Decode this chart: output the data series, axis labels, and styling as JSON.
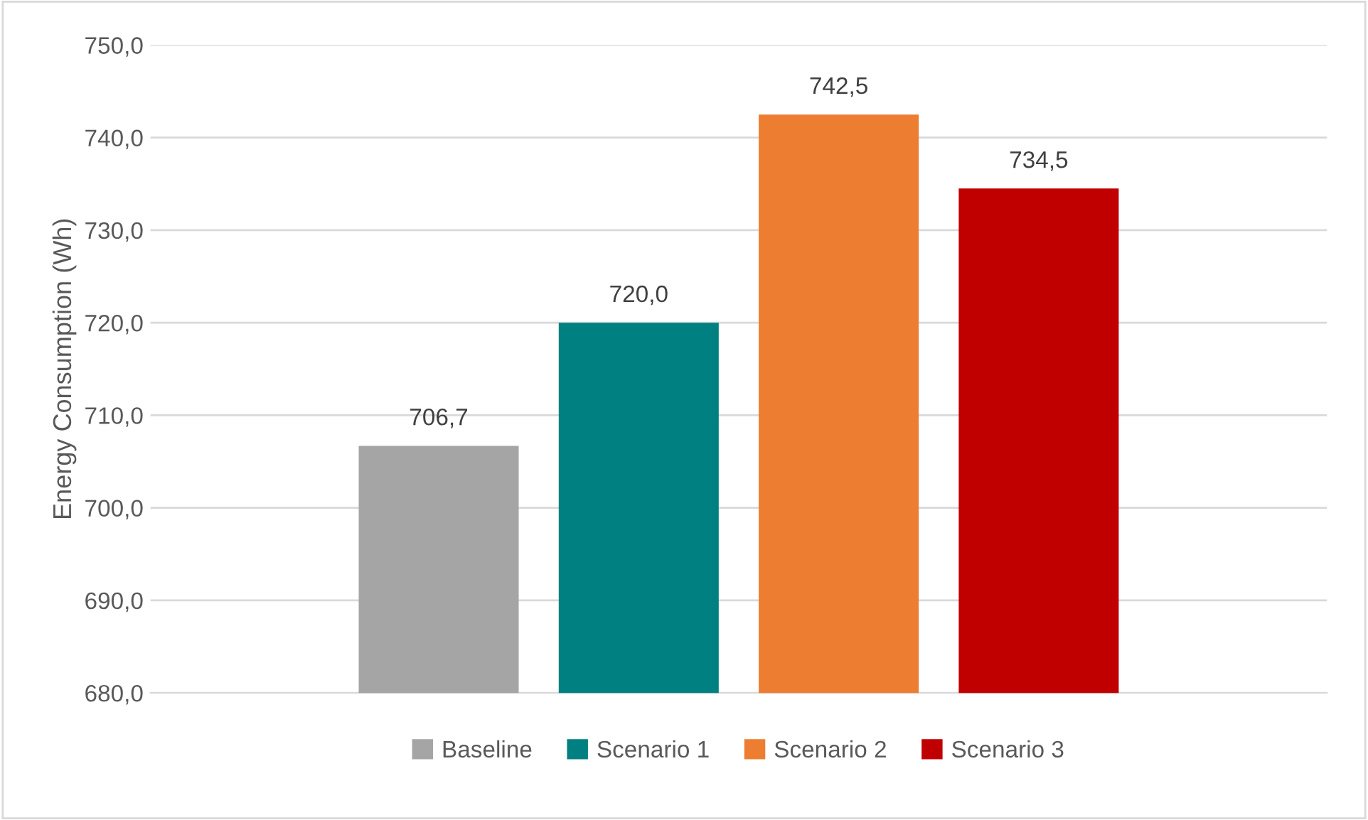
{
  "chart_data": {
    "type": "bar",
    "ylabel": "Energy Consumption (Wh)",
    "categories": [
      null
    ],
    "series": [
      {
        "name": "Baseline",
        "color": "#a5a5a5",
        "values": [
          706.7
        ],
        "value_labels": [
          "706,7"
        ]
      },
      {
        "name": "Scenario 1",
        "color": "#008080",
        "values": [
          720.0
        ],
        "value_labels": [
          "720,0"
        ]
      },
      {
        "name": "Scenario 2",
        "color": "#ed7d31",
        "values": [
          742.5
        ],
        "value_labels": [
          "742,5"
        ]
      },
      {
        "name": "Scenario 3",
        "color": "#c00000",
        "values": [
          734.5
        ],
        "value_labels": [
          "734,5"
        ]
      }
    ],
    "ylim": [
      680,
      750
    ],
    "yticks": [
      {
        "value": 680,
        "label": "680,0"
      },
      {
        "value": 690,
        "label": "690,0"
      },
      {
        "value": 700,
        "label": "700,0"
      },
      {
        "value": 710,
        "label": "710,0"
      },
      {
        "value": 720,
        "label": "720,0"
      },
      {
        "value": 730,
        "label": "730,0"
      },
      {
        "value": 740,
        "label": "740,0"
      },
      {
        "value": 750,
        "label": "750,0"
      }
    ],
    "grid": "y",
    "legend": "bottom"
  }
}
